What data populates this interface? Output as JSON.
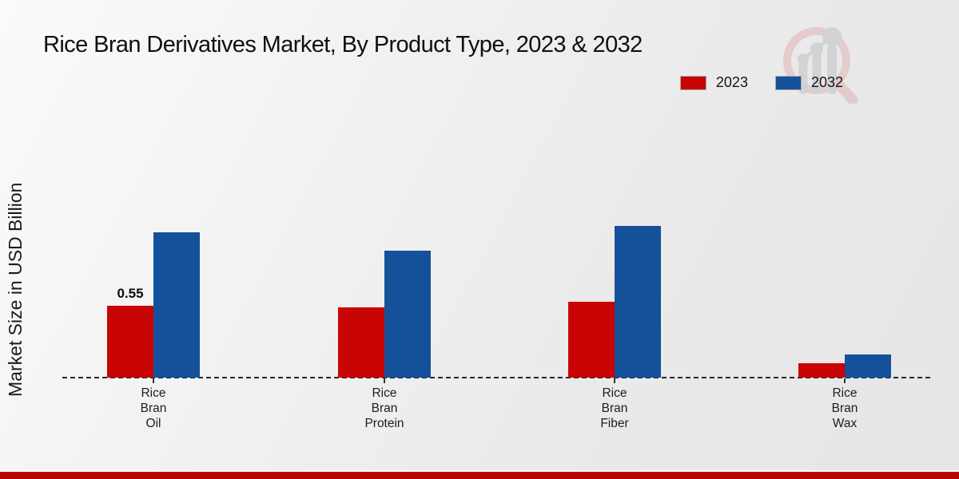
{
  "title": "Rice Bran Derivatives Market, By Product Type, 2023 & 2032",
  "ylabel": "Market Size in USD Billion",
  "legend": {
    "position": "top-right",
    "items": [
      "2023",
      "2032"
    ]
  },
  "colors": {
    "series_2023": "#c80404",
    "series_2032": "#15519b",
    "bottom_strip": "#b50505"
  },
  "chart_data": {
    "type": "bar",
    "title": "Rice Bran Derivatives Market, By Product Type, 2023 & 2032",
    "ylabel": "Market Size in USD Billion",
    "xlabel": "",
    "categories": [
      "Rice Bran Oil",
      "Rice Bran Protein",
      "Rice Bran Fiber",
      "Rice Bran Wax"
    ],
    "categories_multiline": [
      [
        "Rice",
        "Bran",
        "Oil"
      ],
      [
        "Rice",
        "Bran",
        "Protein"
      ],
      [
        "Rice",
        "Bran",
        "Fiber"
      ],
      [
        "Rice",
        "Bran",
        "Wax"
      ]
    ],
    "series": [
      {
        "name": "2023",
        "color": "#c80404",
        "values": [
          0.55,
          0.54,
          0.58,
          0.11
        ]
      },
      {
        "name": "2032",
        "color": "#15519b",
        "values": [
          1.11,
          0.97,
          1.16,
          0.18
        ]
      }
    ],
    "data_labels": [
      {
        "series": "2023",
        "category": "Rice Bran Oil",
        "text": "0.55"
      }
    ],
    "ylim": [
      0,
      1.3
    ],
    "grid": false,
    "legend_position": "top-right",
    "baseline_style": "dashed",
    "y_axis_ticks_visible": false
  }
}
